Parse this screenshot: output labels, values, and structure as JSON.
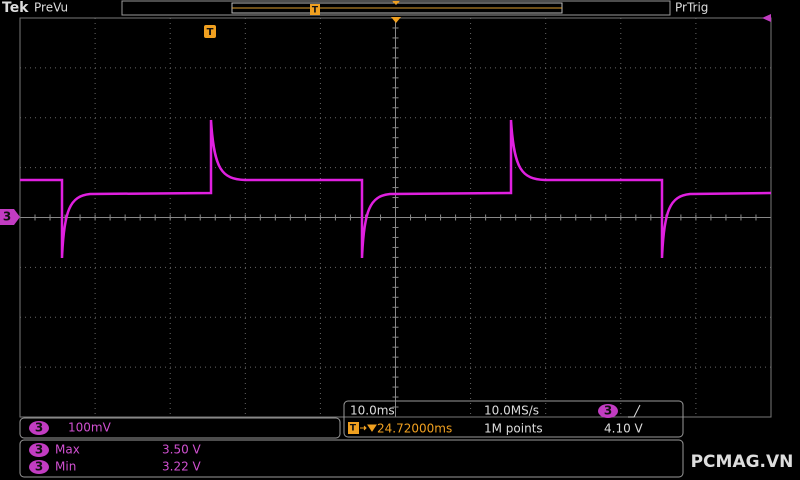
{
  "header": {
    "brand": "Tek",
    "mode": "PreVu",
    "trigger_status": "PrTrig"
  },
  "markers": {
    "trigger": "T",
    "channel": "3"
  },
  "channel_panel": {
    "channel": "3",
    "scale": "100mV"
  },
  "timebase": {
    "scale": "10.0ms",
    "sample_rate": "10.0MS/s",
    "position": "24.72000ms",
    "record_length": "1M points"
  },
  "trigger": {
    "channel": "3",
    "level": "4.10 V"
  },
  "measurements": [
    {
      "channel": "3",
      "label": "Max",
      "value": "3.50 V"
    },
    {
      "channel": "3",
      "label": "Min",
      "value": "3.22 V"
    }
  ],
  "watermark": "PCMAG.VN"
}
